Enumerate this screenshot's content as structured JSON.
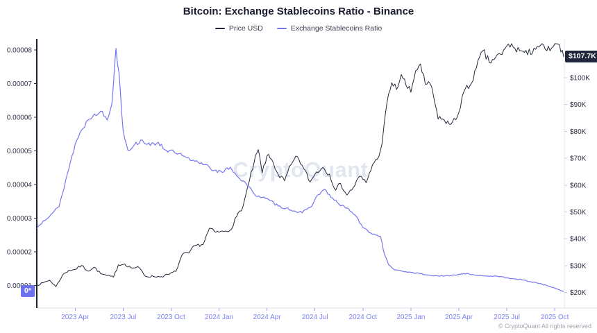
{
  "header": {
    "title": "Bitcoin: Exchange Stablecoins Ratio - Binance"
  },
  "legend": {
    "items": [
      {
        "label": "Price USD"
      },
      {
        "label": "Exchange Stablecoins Ratio"
      }
    ]
  },
  "watermark": {
    "text": "CryptoQuant"
  },
  "footer": {
    "copyright": "© CryptoQuant All rights reserved"
  },
  "badges": {
    "price_last": {
      "text": "$107.7K",
      "bg": "#20263b",
      "fg": "#ffffff"
    },
    "ratio_last": {
      "text": "0*",
      "bg": "#6e71ee",
      "fg": "#ffffff"
    }
  },
  "chart_data": {
    "type": "line",
    "title": "Bitcoin: Exchange Stablecoins Ratio - Binance",
    "grid": "off",
    "legend_position": "top-center",
    "x_unit": "months since 2023-01",
    "x_domain_months": [
      0.6,
      33.6
    ],
    "x_ticks": [
      {
        "t": 3,
        "label": "2023 Apr"
      },
      {
        "t": 6,
        "label": "2023 Jul"
      },
      {
        "t": 9,
        "label": "2023 Oct"
      },
      {
        "t": 12,
        "label": "2024 Jan"
      },
      {
        "t": 15,
        "label": "2024 Apr"
      },
      {
        "t": 18,
        "label": "2024 Jul"
      },
      {
        "t": 21,
        "label": "2024 Oct"
      },
      {
        "t": 24,
        "label": "2025 Jan"
      },
      {
        "t": 27,
        "label": "2025 Apr"
      },
      {
        "t": 30,
        "label": "2025 Jul"
      },
      {
        "t": 33,
        "label": "2025 Oct"
      }
    ],
    "left_axis": {
      "name": "Exchange Stablecoins Ratio",
      "domain": [
        3.7e-06,
        8.21e-05
      ],
      "ticks": [
        {
          "value": 1e-05,
          "label": "0.00001"
        },
        {
          "value": 2e-05,
          "label": "0.00002"
        },
        {
          "value": 3e-05,
          "label": "0.00003"
        },
        {
          "value": 4e-05,
          "label": "0.00004"
        },
        {
          "value": 5e-05,
          "label": "0.00005"
        },
        {
          "value": 6e-05,
          "label": "0.00006"
        },
        {
          "value": 7e-05,
          "label": "0.00007"
        },
        {
          "value": 8e-05,
          "label": "0.00008"
        }
      ]
    },
    "right_axis": {
      "name": "Price USD",
      "domain": [
        14750,
        112900
      ],
      "ticks": [
        {
          "value": 20000,
          "label": "$20K"
        },
        {
          "value": 30000,
          "label": "$30K"
        },
        {
          "value": 40000,
          "label": "$40K"
        },
        {
          "value": 50000,
          "label": "$50K"
        },
        {
          "value": 60000,
          "label": "$60K"
        },
        {
          "value": 70000,
          "label": "$70K"
        },
        {
          "value": 80000,
          "label": "$80K"
        },
        {
          "value": 90000,
          "label": "$90K"
        },
        {
          "value": 100000,
          "label": "$100K"
        }
      ]
    },
    "last_values": {
      "price_usd": "$107.7K",
      "ratio_badge": "0*"
    },
    "series": [
      {
        "name": "Price USD",
        "axis": "right",
        "color": "#23283b",
        "points": [
          [
            0.6,
            22800
          ],
          [
            1.0,
            23600
          ],
          [
            1.4,
            24600
          ],
          [
            1.8,
            22200
          ],
          [
            2.2,
            26400
          ],
          [
            2.6,
            28300
          ],
          [
            3.0,
            28600
          ],
          [
            3.4,
            30100
          ],
          [
            3.8,
            28000
          ],
          [
            4.2,
            29400
          ],
          [
            4.6,
            27000
          ],
          [
            5.0,
            26300
          ],
          [
            5.4,
            25700
          ],
          [
            5.7,
            30300
          ],
          [
            6.1,
            30600
          ],
          [
            6.5,
            29200
          ],
          [
            7.0,
            29300
          ],
          [
            7.4,
            26000
          ],
          [
            7.9,
            26000
          ],
          [
            8.4,
            25900
          ],
          [
            8.9,
            26900
          ],
          [
            9.3,
            27900
          ],
          [
            9.7,
            34200
          ],
          [
            10.1,
            34700
          ],
          [
            10.5,
            37500
          ],
          [
            11.0,
            37900
          ],
          [
            11.4,
            43900
          ],
          [
            11.8,
            42400
          ],
          [
            12.3,
            42700
          ],
          [
            12.7,
            43200
          ],
          [
            13.1,
            48300
          ],
          [
            13.5,
            52100
          ],
          [
            13.9,
            61600
          ],
          [
            14.2,
            68600
          ],
          [
            14.45,
            73200
          ],
          [
            14.7,
            64600
          ],
          [
            15.0,
            70900
          ],
          [
            15.3,
            69500
          ],
          [
            15.7,
            63900
          ],
          [
            16.1,
            61600
          ],
          [
            16.5,
            67600
          ],
          [
            16.9,
            70600
          ],
          [
            17.3,
            66100
          ],
          [
            17.7,
            61200
          ],
          [
            18.1,
            64900
          ],
          [
            18.5,
            66600
          ],
          [
            18.9,
            64100
          ],
          [
            19.3,
            58100
          ],
          [
            19.6,
            60600
          ],
          [
            20.0,
            56300
          ],
          [
            20.4,
            59100
          ],
          [
            20.8,
            63300
          ],
          [
            21.2,
            60900
          ],
          [
            21.6,
            67600
          ],
          [
            21.9,
            69600
          ],
          [
            22.2,
            75600
          ],
          [
            22.5,
            90600
          ],
          [
            22.8,
            98100
          ],
          [
            23.1,
            95600
          ],
          [
            23.4,
            101200
          ],
          [
            23.7,
            97100
          ],
          [
            24.0,
            94600
          ],
          [
            24.3,
            102600
          ],
          [
            24.6,
            105100
          ],
          [
            24.9,
            97600
          ],
          [
            25.3,
            96600
          ],
          [
            25.7,
            84600
          ],
          [
            26.1,
            84100
          ],
          [
            26.5,
            82600
          ],
          [
            26.9,
            85300
          ],
          [
            27.3,
            94600
          ],
          [
            27.7,
            97100
          ],
          [
            28.1,
            103600
          ],
          [
            28.5,
            110000
          ],
          [
            28.9,
            105600
          ],
          [
            29.3,
            107600
          ],
          [
            29.7,
            108600
          ],
          [
            30.1,
            112500
          ],
          [
            30.5,
            111000
          ],
          [
            30.9,
            110000
          ],
          [
            31.3,
            108500
          ],
          [
            31.7,
            111000
          ],
          [
            32.1,
            112000
          ],
          [
            32.5,
            110000
          ],
          [
            32.9,
            111500
          ],
          [
            33.2,
            112500
          ],
          [
            33.56,
            107700
          ]
        ]
      },
      {
        "name": "Exchange Stablecoins Ratio",
        "axis": "left",
        "color": "#7477f0",
        "points": [
          [
            0.6,
            2.7e-05
          ],
          [
            1.0,
            2.92e-05
          ],
          [
            1.5,
            3.12e-05
          ],
          [
            2.0,
            3.35e-05
          ],
          [
            2.5,
            4.3e-05
          ],
          [
            3.0,
            5.2e-05
          ],
          [
            3.4,
            5.62e-05
          ],
          [
            3.8,
            5.92e-05
          ],
          [
            4.2,
            6.1e-05
          ],
          [
            4.6,
            6.18e-05
          ],
          [
            5.0,
            5.92e-05
          ],
          [
            5.3,
            6.4e-05
          ],
          [
            5.55,
            8.05e-05
          ],
          [
            5.75,
            7.3e-05
          ],
          [
            6.0,
            5.6e-05
          ],
          [
            6.3,
            5.02e-05
          ],
          [
            6.7,
            5.18e-05
          ],
          [
            7.2,
            5.32e-05
          ],
          [
            7.7,
            5.16e-05
          ],
          [
            8.2,
            5.26e-05
          ],
          [
            8.7,
            5.02e-05
          ],
          [
            9.2,
            4.96e-05
          ],
          [
            9.7,
            4.86e-05
          ],
          [
            10.2,
            4.72e-05
          ],
          [
            10.7,
            4.66e-05
          ],
          [
            11.2,
            4.6e-05
          ],
          [
            11.7,
            4.42e-05
          ],
          [
            12.2,
            4.36e-05
          ],
          [
            12.7,
            4.52e-05
          ],
          [
            13.2,
            4.22e-05
          ],
          [
            13.7,
            4.02e-05
          ],
          [
            14.2,
            3.72e-05
          ],
          [
            14.7,
            3.62e-05
          ],
          [
            15.2,
            3.52e-05
          ],
          [
            15.7,
            3.36e-05
          ],
          [
            16.2,
            3.3e-05
          ],
          [
            16.7,
            3.22e-05
          ],
          [
            17.2,
            3.16e-05
          ],
          [
            17.7,
            3.32e-05
          ],
          [
            18.2,
            3.7e-05
          ],
          [
            18.6,
            3.86e-05
          ],
          [
            19.0,
            3.62e-05
          ],
          [
            19.5,
            3.42e-05
          ],
          [
            20.0,
            3.3e-05
          ],
          [
            20.5,
            3.1e-05
          ],
          [
            21.0,
            2.72e-05
          ],
          [
            21.5,
            2.56e-05
          ],
          [
            21.8,
            2.5e-05
          ],
          [
            22.1,
            2.46e-05
          ],
          [
            22.35,
            1.92e-05
          ],
          [
            22.6,
            1.62e-05
          ],
          [
            23.0,
            1.46e-05
          ],
          [
            23.5,
            1.42e-05
          ],
          [
            24.0,
            1.39e-05
          ],
          [
            24.5,
            1.36e-05
          ],
          [
            25.0,
            1.31e-05
          ],
          [
            25.5,
            1.29e-05
          ],
          [
            26.0,
            1.28e-05
          ],
          [
            26.5,
            1.29e-05
          ],
          [
            27.0,
            1.33e-05
          ],
          [
            27.5,
            1.36e-05
          ],
          [
            28.0,
            1.31e-05
          ],
          [
            28.5,
            1.29e-05
          ],
          [
            29.0,
            1.28e-05
          ],
          [
            29.5,
            1.26e-05
          ],
          [
            30.0,
            1.23e-05
          ],
          [
            30.5,
            1.2e-05
          ],
          [
            31.0,
            1.16e-05
          ],
          [
            31.5,
            1.11e-05
          ],
          [
            32.0,
            1.06e-05
          ],
          [
            32.5,
            1e-05
          ],
          [
            33.0,
            9.2e-06
          ],
          [
            33.56,
            8.2e-06
          ]
        ]
      }
    ]
  }
}
